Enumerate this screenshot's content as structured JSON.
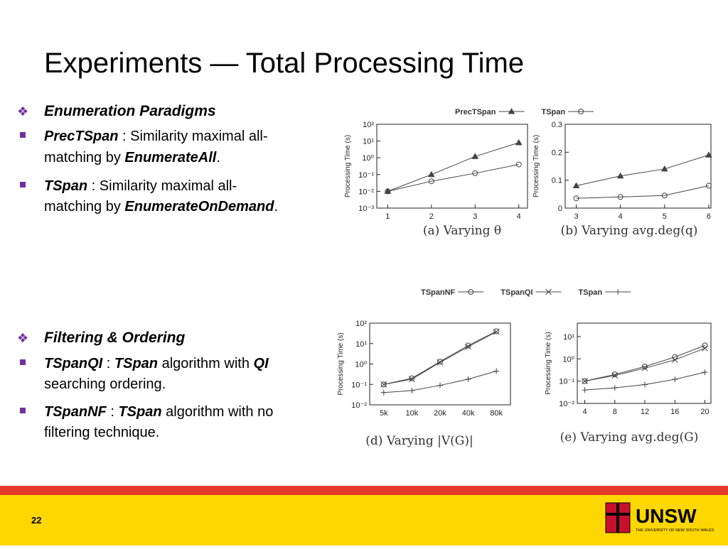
{
  "slide": {
    "title": "Experiments — Total Processing Time",
    "page": "22",
    "logo": "UNSW",
    "logo_sub": "THE UNIVERSITY OF NEW SOUTH WALES",
    "sections": [
      {
        "heading": "Enumeration Paradigms",
        "items": [
          {
            "lines": [
              [
                "PrecTSpan",
                " : Similarity maximal all-"
              ],
              [
                "matching by ",
                "EnumerateAll",
                "."
              ]
            ]
          },
          {
            "lines": [
              [
                "TSpan",
                " : Similarity maximal all-"
              ],
              [
                "matching by ",
                "EnumerateOnDemand",
                "."
              ]
            ]
          }
        ]
      },
      {
        "heading": "Filtering & Ordering",
        "items": [
          {
            "lines": [
              [
                "TSpanQI",
                " : ",
                "TSpan",
                " algorithm with ",
                "QI"
              ],
              [
                "searching ordering."
              ]
            ]
          },
          {
            "lines": [
              [
                "TSpanNF",
                " : ",
                "TSpan",
                " algorithm with no"
              ],
              [
                "filtering technique."
              ]
            ]
          }
        ]
      }
    ]
  },
  "chart_data": [
    {
      "type": "line",
      "caption": "(a) Varying θ",
      "ylabel": "Processing Time (s)",
      "log_y": true,
      "legend": true,
      "x": [
        1,
        2,
        3,
        4
      ],
      "xlim": [
        0.75,
        4.2
      ],
      "xticks": [
        1,
        2,
        3,
        4
      ],
      "ylim": [
        0.001,
        100
      ],
      "yticks": [
        {
          "value": 0.001,
          "label": "10⁻³"
        },
        {
          "value": 0.01,
          "label": "10⁻²"
        },
        {
          "value": 0.1,
          "label": "10⁻¹"
        },
        {
          "value": 1,
          "label": "10⁰"
        },
        {
          "value": 10,
          "label": "10¹"
        },
        {
          "value": 100,
          "label": "10²"
        }
      ],
      "series": [
        {
          "name": "PrecTSpan",
          "color": "#444444",
          "marker": "triangle",
          "values": [
            0.01,
            0.1,
            1.2,
            8
          ]
        },
        {
          "name": "TSpan",
          "color": "#444444",
          "marker": "circle",
          "values": [
            0.01,
            0.04,
            0.12,
            0.4
          ]
        }
      ]
    },
    {
      "type": "line",
      "caption": "(b) Varying avg.deg(q)",
      "ylabel": "Processing Time (s)",
      "log_y": false,
      "legend": false,
      "x": [
        3,
        4,
        5,
        6
      ],
      "xlim": [
        2.75,
        6.05
      ],
      "xticks": [
        3,
        4,
        5,
        6
      ],
      "ylim": [
        0,
        0.3
      ],
      "yticks": [
        0,
        0.1,
        0.2,
        0.3
      ],
      "series": [
        {
          "name": "PrecTSpan",
          "color": "#444444",
          "marker": "triangle",
          "values": [
            0.08,
            0.115,
            0.14,
            0.19
          ]
        },
        {
          "name": "TSpan",
          "color": "#444444",
          "marker": "circle",
          "values": [
            0.035,
            0.04,
            0.045,
            0.08
          ]
        }
      ]
    },
    {
      "type": "line",
      "caption": "(d) Varying |V(G)|",
      "ylabel": "Processing Time (s)",
      "log_y": true,
      "legend": true,
      "categories": [
        "5k",
        "10k",
        "20k",
        "40k",
        "80k"
      ],
      "ylim": [
        0.01,
        100
      ],
      "yticks": [
        {
          "value": 0.01,
          "label": "10⁻²"
        },
        {
          "value": 0.1,
          "label": "10⁻¹"
        },
        {
          "value": 1,
          "label": "10⁰"
        },
        {
          "value": 10,
          "label": "10¹"
        },
        {
          "value": 100,
          "label": "10²"
        }
      ],
      "series": [
        {
          "name": "TSpanNF",
          "color": "#444444",
          "marker": "circle",
          "values": [
            0.1,
            0.2,
            1.3,
            8,
            40
          ]
        },
        {
          "name": "TSpanQI",
          "color": "#444444",
          "marker": "x",
          "values": [
            0.1,
            0.18,
            1.2,
            7,
            38
          ]
        },
        {
          "name": "TSpan",
          "color": "#444444",
          "marker": "plus",
          "values": [
            0.04,
            0.05,
            0.09,
            0.18,
            0.45
          ]
        }
      ]
    },
    {
      "type": "line",
      "caption": "(e) Varying avg.deg(G)",
      "ylabel": "Processing Time (s)",
      "log_y": true,
      "legend": false,
      "x": [
        4,
        8,
        12,
        16,
        20
      ],
      "xlim": [
        3,
        20.8
      ],
      "xticks": [
        4,
        8,
        12,
        16,
        20
      ],
      "ylim": [
        0.01,
        40
      ],
      "yticks": [
        {
          "value": 0.01,
          "label": "10⁻²"
        },
        {
          "value": 0.1,
          "label": "10⁻¹"
        },
        {
          "value": 1,
          "label": "10⁰"
        },
        {
          "value": 10,
          "label": "10¹"
        }
      ],
      "series": [
        {
          "name": "TSpanNF",
          "color": "#444444",
          "marker": "circle",
          "values": [
            0.1,
            0.2,
            0.45,
            1.2,
            4
          ]
        },
        {
          "name": "TSpanQI",
          "color": "#444444",
          "marker": "x",
          "values": [
            0.1,
            0.18,
            0.38,
            0.9,
            3
          ]
        },
        {
          "name": "TSpan",
          "color": "#444444",
          "marker": "plus",
          "values": [
            0.04,
            0.05,
            0.07,
            0.12,
            0.25
          ]
        }
      ]
    }
  ]
}
